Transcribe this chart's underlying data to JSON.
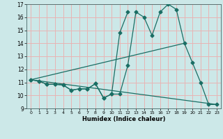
{
  "xlabel": "Humidex (Indice chaleur)",
  "bg_color": "#cce8e8",
  "grid_color": "#e8b4b4",
  "line_color": "#1a6e64",
  "xlim": [
    -0.5,
    23.5
  ],
  "ylim": [
    9,
    17
  ],
  "xticks": [
    0,
    1,
    2,
    3,
    4,
    5,
    6,
    7,
    8,
    9,
    10,
    11,
    12,
    13,
    14,
    15,
    16,
    17,
    18,
    19,
    20,
    21,
    22,
    23
  ],
  "yticks": [
    9,
    10,
    11,
    12,
    13,
    14,
    15,
    16,
    17
  ],
  "series1_x": [
    0,
    1,
    2,
    3,
    4,
    5,
    6,
    7,
    8,
    9,
    10,
    11,
    12,
    13,
    14,
    15,
    16,
    17,
    18,
    19,
    20,
    21,
    22,
    23
  ],
  "series1_y": [
    11.2,
    11.1,
    10.85,
    10.85,
    10.8,
    10.4,
    10.5,
    10.5,
    10.9,
    9.8,
    10.1,
    10.1,
    12.3,
    16.4,
    16.0,
    14.6,
    16.4,
    17.0,
    16.6,
    14.0,
    12.5,
    11.0,
    9.3,
    9.3
  ],
  "series2_x": [
    0,
    1,
    2,
    3,
    4,
    5,
    6,
    7,
    8,
    9,
    10,
    11,
    12
  ],
  "series2_y": [
    11.2,
    11.1,
    10.85,
    10.85,
    10.8,
    10.4,
    10.5,
    10.5,
    10.9,
    9.8,
    10.1,
    14.8,
    16.4
  ],
  "series3_x": [
    0,
    23
  ],
  "series3_y": [
    11.2,
    9.3
  ],
  "series4_x": [
    0,
    19
  ],
  "series4_y": [
    11.2,
    14.0
  ]
}
